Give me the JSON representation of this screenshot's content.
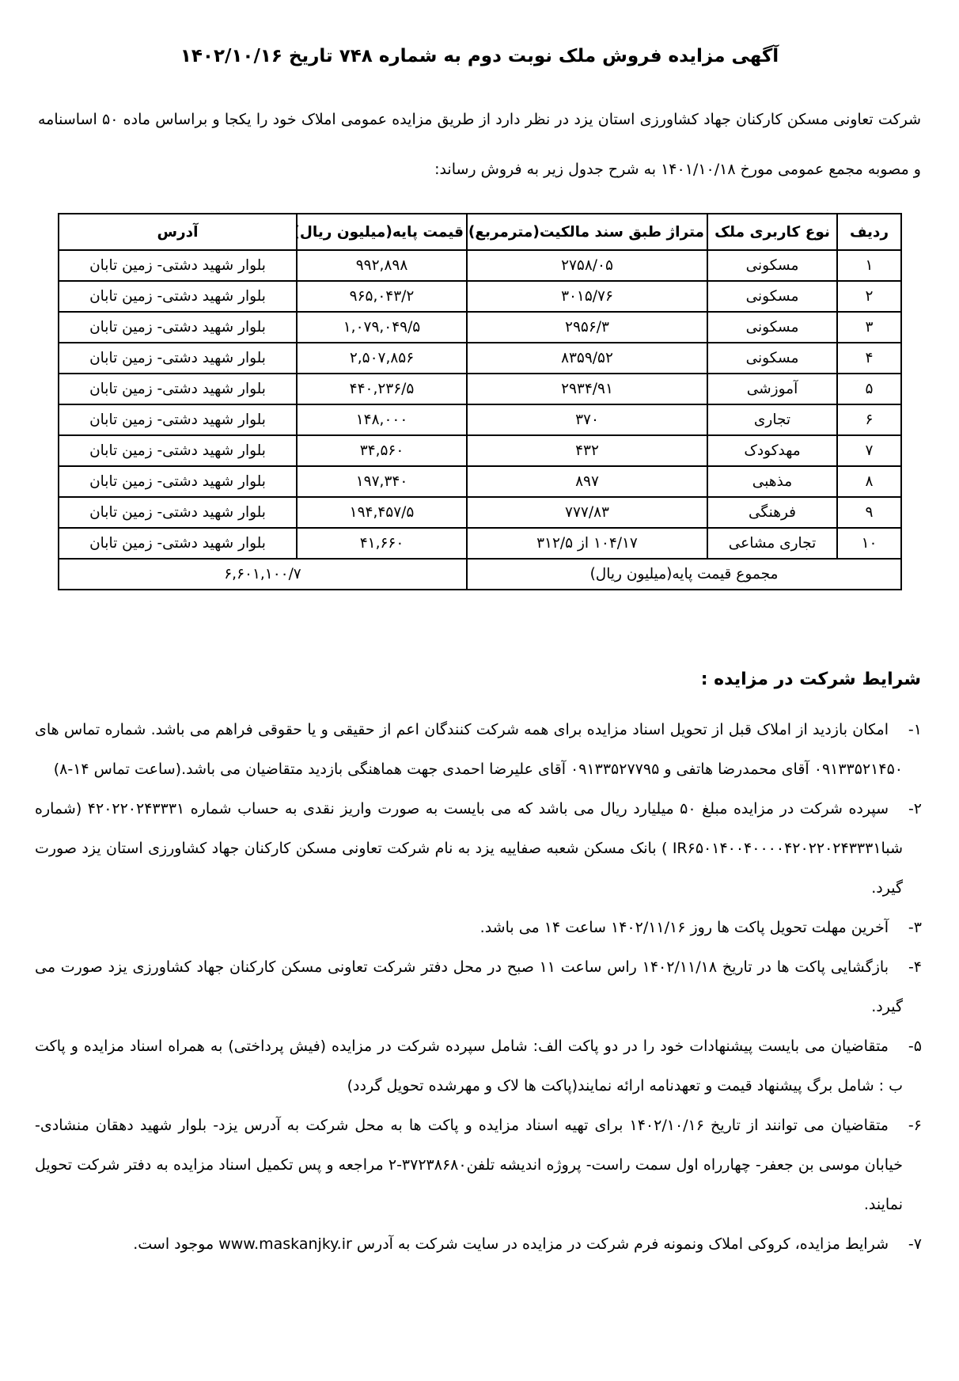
{
  "page": {
    "title": "آگهی مزایده فروش ملک نوبت دوم به شماره ۷۴۸ تاریخ ۱۴۰۲/۱۰/۱۶",
    "intro": "شرکت تعاونی مسکن کارکنان جهاد کشاورزی استان یزد در نظر دارد از طریق مزایده عمومی املاک خود را یکجا و براساس ماده ۵۰ اساسنامه و مصوبه مجمع عمومی  مورخ ۱۴۰۱/۱۰/۱۸  به شرح جدول زیر به فروش رساند:"
  },
  "table": {
    "headers": {
      "row": "ردیف",
      "usage": "نوع کاربری ملک",
      "area": "متراژ طبق سند مالکیت(مترمربع)",
      "price": "قیمت پایه(میلیون ریال)",
      "address": "آدرس"
    },
    "rows": [
      {
        "row": "۱",
        "usage": "مسکونی",
        "area": "۲۷۵۸/۰۵",
        "price": "۹۹۲,۸۹۸",
        "address": "بلوار شهید دشتی- زمین تابان"
      },
      {
        "row": "۲",
        "usage": "مسکونی",
        "area": "۳۰۱۵/۷۶",
        "price": "۹۶۵,۰۴۳/۲",
        "address": "بلوار شهید دشتی- زمین تابان"
      },
      {
        "row": "۳",
        "usage": "مسکونی",
        "area": "۲۹۵۶/۳",
        "price": "۱,۰۷۹,۰۴۹/۵",
        "address": "بلوار شهید دشتی- زمین تابان"
      },
      {
        "row": "۴",
        "usage": "مسکونی",
        "area": "۸۳۵۹/۵۲",
        "price": "۲,۵۰۷,۸۵۶",
        "address": "بلوار شهید دشتی- زمین تابان"
      },
      {
        "row": "۵",
        "usage": "آموزشی",
        "area": "۲۹۳۴/۹۱",
        "price": "۴۴۰,۲۳۶/۵",
        "address": "بلوار شهید دشتی- زمین تابان"
      },
      {
        "row": "۶",
        "usage": "تجاری",
        "area": "۳۷۰",
        "price": "۱۴۸,۰۰۰",
        "address": "بلوار شهید دشتی- زمین تابان"
      },
      {
        "row": "۷",
        "usage": "مهدکودک",
        "area": "۴۳۲",
        "price": "۳۴,۵۶۰",
        "address": "بلوار شهید دشتی- زمین تابان"
      },
      {
        "row": "۸",
        "usage": "مذهبی",
        "area": "۸۹۷",
        "price": "۱۹۷,۳۴۰",
        "address": "بلوار شهید دشتی- زمین تابان"
      },
      {
        "row": "۹",
        "usage": "فرهنگی",
        "area": "۷۷۷/۸۳",
        "price": "۱۹۴,۴۵۷/۵",
        "address": "بلوار شهید دشتی- زمین تابان"
      },
      {
        "row": "۱۰",
        "usage": "تجاری مشاعی",
        "area": "۱۰۴/۱۷ از ۳۱۲/۵",
        "price": "۴۱,۶۶۰",
        "address": "بلوار شهید دشتی- زمین تابان"
      }
    ],
    "total_label": "مجموع قیمت پایه(میلیون ریال)",
    "total_value": "۶,۶۰۱,۱۰۰/۷"
  },
  "conditions": {
    "heading": "شرایط شرکت در مزایده :",
    "items": [
      {
        "num": "۱-",
        "text": "امکان بازدید از املاک قبل از تحویل اسناد مزایده برای همه شرکت کنندگان اعم از حقیقی و یا حقوقی فراهم می باشد. شماره تماس های ۰۹۱۳۳۵۲۱۴۵۰ آقای محمدرضا هاتفی و ۰۹۱۳۳۵۲۷۷۹۵ آقای علیرضا احمدی جهت هماهنگی بازدید متقاضیان می باشد.(ساعت تماس ۱۴-۸)"
      },
      {
        "num": "۲-",
        "text": "سپرده شرکت در مزایده مبلغ ۵۰ میلیارد ریال می باشد که می بایست به صورت واریز نقدی به حساب شماره ۴۲۰۲۲۰۲۴۳۳۳۱ (شماره شباIR۶۵۰۱۴۰۰۴۰۰۰۰۴۲۰۲۲۰۲۴۳۳۳۱ ) بانک مسکن شعبه صفاییه یزد  به نام شرکت تعاونی مسکن کارکنان جهاد کشاورزی استان یزد صورت گیرد."
      },
      {
        "num": "۳-",
        "text": "آخرین مهلت تحویل پاکت ها روز ۱۴۰۲/۱۱/۱۶ ساعت ۱۴ می باشد."
      },
      {
        "num": "۴-",
        "text": "بازگشایی پاکت ها در تاریخ ۱۴۰۲/۱۱/۱۸ راس ساعت ۱۱ صبح در محل دفتر شرکت تعاونی مسکن کارکنان جهاد کشاورزی یزد صورت می گیرد."
      },
      {
        "num": "۵-",
        "text": "متقاضیان می بایست پیشنهادات خود را در دو پاکت الف: شامل سپرده شرکت در مزایده (فیش پرداختی) به همراه اسناد مزایده و پاکت ب : شامل برگ پیشنهاد قیمت و تعهدنامه ارائه نمایند(پاکت ها لاک و مهرشده تحویل گردد)"
      },
      {
        "num": "۶-",
        "text": "متقاضیان می توانند از تاریخ ۱۴۰۲/۱۰/۱۶ برای تهیه اسناد مزایده و پاکت ها به محل شرکت به آدرس یزد- بلوار شهید دهقان منشادی- خیابان موسی بن جعفر- چهارراه اول سمت راست- پروژه اندیشه تلفن۳۷۲۳۸۶۸۰-۲ مراجعه و پس تکمیل اسناد مزایده به دفتر شرکت تحویل نمایند."
      },
      {
        "num": "۷-",
        "text": "شرایط مزایده، کروکی املاک ونمونه فرم شرکت در مزایده در سایت شرکت به آدرس www.maskanjky.ir  موجود است."
      }
    ]
  }
}
